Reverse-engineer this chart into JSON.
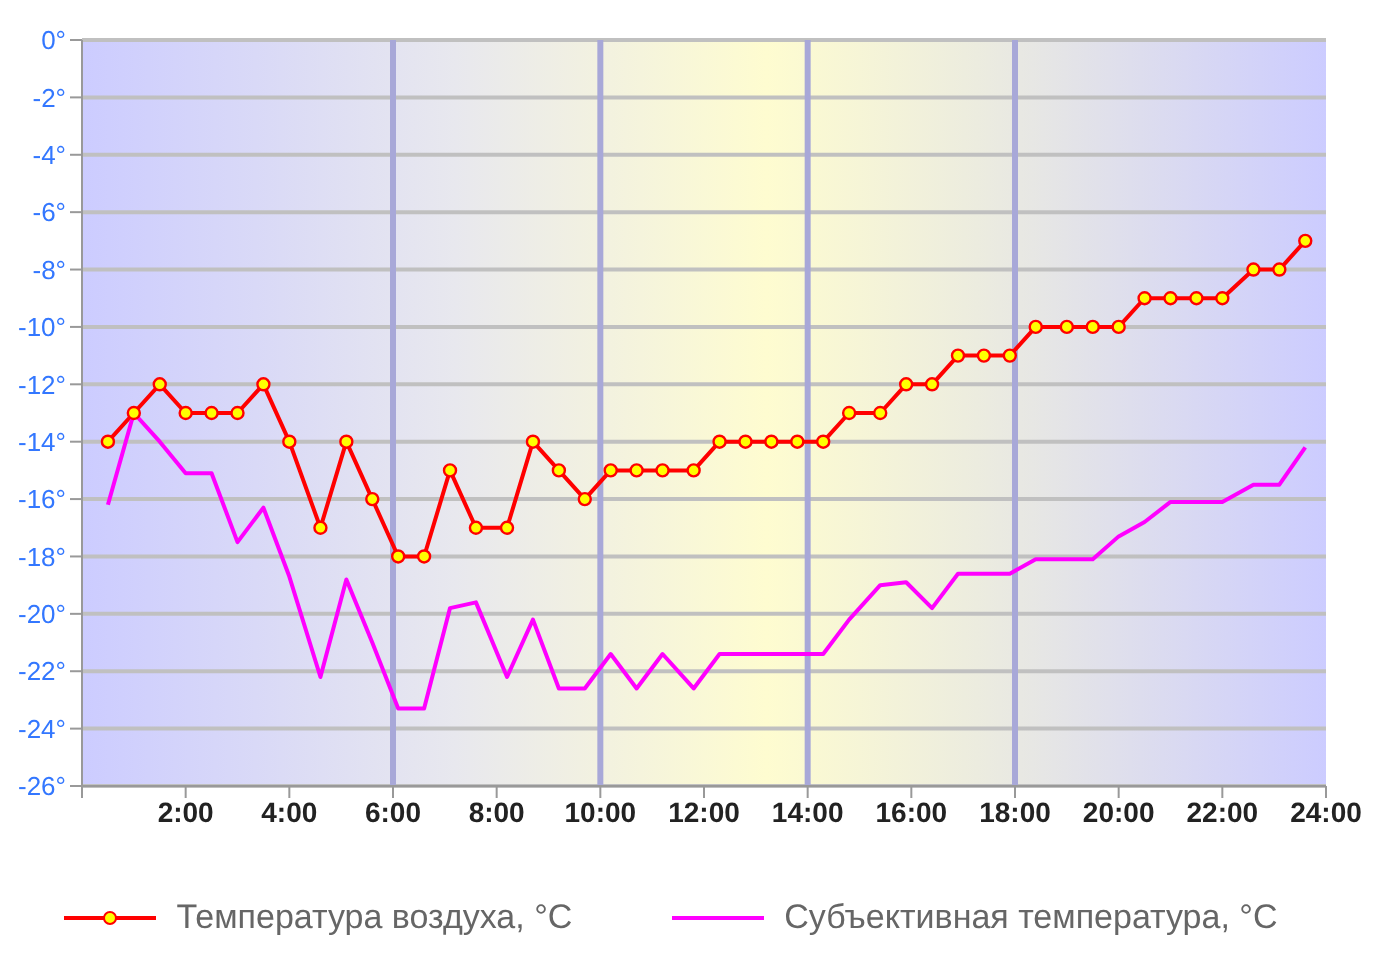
{
  "chart_data": {
    "type": "line",
    "x": [
      0.5,
      1.0,
      1.5,
      2.0,
      2.5,
      3.0,
      3.5,
      4.0,
      4.6,
      5.1,
      5.6,
      6.1,
      6.6,
      7.1,
      7.6,
      8.2,
      8.7,
      9.2,
      9.7,
      10.2,
      10.7,
      11.2,
      11.8,
      12.3,
      12.8,
      13.3,
      13.8,
      14.3,
      14.8,
      15.4,
      15.9,
      16.4,
      16.9,
      17.4,
      17.9,
      18.4,
      19.0,
      19.5,
      20.0,
      20.5,
      21.0,
      21.5,
      22.0,
      22.6,
      23.1,
      23.6
    ],
    "series": [
      {
        "name": "Температура воздуха, °C",
        "color": "#ff0000",
        "marker": "circle",
        "values": [
          -14,
          -13,
          -12,
          -13,
          -13,
          -13,
          -12,
          -14,
          -17,
          -14,
          -16,
          -18,
          -18,
          -15,
          -17,
          -17,
          -14,
          -15,
          -16,
          -15,
          -15,
          -15,
          -15,
          -14,
          -14,
          -14,
          -14,
          -14,
          -13,
          -13,
          -12,
          -12,
          -11,
          -11,
          -11,
          -10,
          -10,
          -10,
          -10,
          -9,
          -9,
          -9,
          -9,
          -8,
          -8,
          -7
        ]
      },
      {
        "name": "Субъективная температура, °C",
        "color": "#ff00ff",
        "marker": "none",
        "values": [
          -16.2,
          -13,
          -14,
          -15.1,
          -15.1,
          -17.5,
          -16.3,
          -18.7,
          -22.2,
          -18.8,
          -21,
          -23.3,
          -23.3,
          -19.8,
          -19.6,
          -22.2,
          -20.2,
          -22.6,
          -22.6,
          -21.4,
          -22.6,
          -21.4,
          -22.6,
          -21.4,
          -21.4,
          -21.4,
          -21.4,
          -21.4,
          -20.2,
          -19,
          -18.9,
          -19.8,
          -18.6,
          -18.6,
          -18.6,
          -18.1,
          -18.1,
          -18.1,
          -17.3,
          -16.8,
          -16.1,
          -16.1,
          -16.1,
          -15.5,
          -15.5,
          -14.2
        ]
      }
    ],
    "xlim": [
      0,
      24
    ],
    "xticks": [
      {
        "value": 0,
        "label": null
      },
      {
        "value": 2,
        "label": "2:00"
      },
      {
        "value": 4,
        "label": "4:00"
      },
      {
        "value": 6,
        "label": "6:00"
      },
      {
        "value": 8,
        "label": "8:00"
      },
      {
        "value": 10,
        "label": "10:00"
      },
      {
        "value": 12,
        "label": "12:00"
      },
      {
        "value": 14,
        "label": "14:00"
      },
      {
        "value": 16,
        "label": "16:00"
      },
      {
        "value": 18,
        "label": "18:00"
      },
      {
        "value": 20,
        "label": "20:00"
      },
      {
        "value": 22,
        "label": "22:00"
      },
      {
        "value": 24,
        "label": "24:00"
      }
    ],
    "ylim": [
      -26,
      0
    ],
    "yticks": [
      {
        "value": 0,
        "label": "0°"
      },
      {
        "value": -2,
        "label": "-2°"
      },
      {
        "value": -4,
        "label": "-4°"
      },
      {
        "value": -6,
        "label": "-6°"
      },
      {
        "value": -8,
        "label": "-8°"
      },
      {
        "value": -10,
        "label": "-10°"
      },
      {
        "value": -12,
        "label": "-12°"
      },
      {
        "value": -14,
        "label": "-14°"
      },
      {
        "value": -16,
        "label": "-16°"
      },
      {
        "value": -18,
        "label": "-18°"
      },
      {
        "value": -20,
        "label": "-20°"
      },
      {
        "value": -22,
        "label": "-22°"
      },
      {
        "value": -24,
        "label": "-24°"
      },
      {
        "value": -26,
        "label": "-26°"
      }
    ],
    "ref_lines": [
      {
        "axis": "x",
        "value": 6,
        "color": "#a8a8d8"
      },
      {
        "axis": "x",
        "value": 10,
        "color": "#a8a8d8"
      },
      {
        "axis": "x",
        "value": 14,
        "color": "#a8a8d8"
      },
      {
        "axis": "x",
        "value": 18,
        "color": "#a8a8d8"
      }
    ],
    "grid": "y",
    "legend": "bottom",
    "line_style": "solid"
  }
}
